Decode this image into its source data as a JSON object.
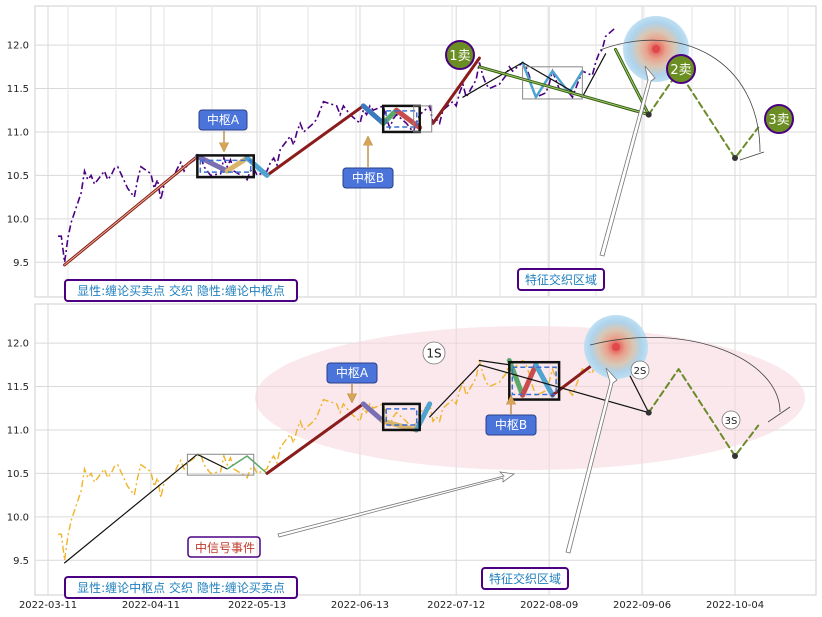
{
  "chart_data": [
    {
      "type": "line",
      "panel": "top",
      "ylim": [
        9.1,
        12.45
      ],
      "yticks": [
        "9.5",
        "10.0",
        "10.5",
        "11.0",
        "11.5",
        "12.0"
      ],
      "grid": true,
      "price_series": {
        "style": "dash-dot",
        "color": "#4b0082",
        "points": [
          [
            "2022-03-14",
            9.8
          ],
          [
            "2022-03-15",
            9.8
          ],
          [
            "2022-03-16",
            9.5
          ],
          [
            "2022-03-17",
            9.78
          ],
          [
            "2022-03-18",
            9.96
          ],
          [
            "2022-03-21",
            10.3
          ],
          [
            "2022-03-22",
            10.55
          ],
          [
            "2022-03-23",
            10.45
          ],
          [
            "2022-03-24",
            10.5
          ],
          [
            "2022-03-25",
            10.4
          ],
          [
            "2022-03-28",
            10.55
          ],
          [
            "2022-03-29",
            10.45
          ],
          [
            "2022-03-30",
            10.5
          ],
          [
            "2022-03-31",
            10.58
          ],
          [
            "2022-04-01",
            10.6
          ],
          [
            "2022-04-04",
            10.35
          ],
          [
            "2022-04-05",
            10.3
          ],
          [
            "2022-04-06",
            10.25
          ],
          [
            "2022-04-07",
            10.45
          ],
          [
            "2022-04-08",
            10.6
          ],
          [
            "2022-04-11",
            10.52
          ],
          [
            "2022-04-12",
            10.35
          ],
          [
            "2022-04-13",
            10.45
          ],
          [
            "2022-04-14",
            10.22
          ],
          [
            "2022-04-15",
            10.4
          ],
          [
            "2022-04-18",
            10.5
          ],
          [
            "2022-04-19",
            10.58
          ],
          [
            "2022-04-20",
            10.65
          ],
          [
            "2022-04-21",
            10.55
          ],
          [
            "2022-04-22",
            10.62
          ],
          [
            "2022-04-25",
            10.7
          ],
          [
            "2022-04-26",
            10.72
          ],
          [
            "2022-04-27",
            10.6
          ],
          [
            "2022-04-28",
            10.55
          ],
          [
            "2022-04-29",
            10.5
          ],
          [
            "2022-05-02",
            10.52
          ],
          [
            "2022-05-03",
            10.7
          ],
          [
            "2022-05-04",
            10.6
          ],
          [
            "2022-05-05",
            10.68
          ],
          [
            "2022-05-06",
            10.55
          ],
          [
            "2022-05-09",
            10.48
          ],
          [
            "2022-05-10",
            10.45
          ],
          [
            "2022-05-11",
            10.55
          ],
          [
            "2022-05-12",
            10.58
          ],
          [
            "2022-05-13",
            10.5
          ],
          [
            "2022-05-16",
            10.55
          ],
          [
            "2022-05-17",
            10.65
          ],
          [
            "2022-05-18",
            10.7
          ],
          [
            "2022-05-19",
            10.62
          ],
          [
            "2022-05-20",
            10.8
          ],
          [
            "2022-05-23",
            10.95
          ],
          [
            "2022-05-24",
            10.85
          ],
          [
            "2022-05-25",
            11.0
          ],
          [
            "2022-05-26",
            11.1
          ],
          [
            "2022-05-27",
            11.0
          ],
          [
            "2022-05-30",
            11.1
          ],
          [
            "2022-05-31",
            11.15
          ],
          [
            "2022-06-01",
            11.25
          ],
          [
            "2022-06-02",
            11.35
          ],
          [
            "2022-06-06",
            11.3
          ],
          [
            "2022-06-07",
            11.2
          ],
          [
            "2022-06-08",
            11.3
          ],
          [
            "2022-06-09",
            11.25
          ],
          [
            "2022-06-10",
            11.2
          ],
          [
            "2022-06-13",
            11.1
          ],
          [
            "2022-06-14",
            11.25
          ],
          [
            "2022-06-15",
            11.2
          ],
          [
            "2022-06-16",
            11.3
          ],
          [
            "2022-06-17",
            11.25
          ],
          [
            "2022-06-20",
            11.3
          ],
          [
            "2022-06-21",
            11.15
          ],
          [
            "2022-06-22",
            11.05
          ],
          [
            "2022-06-23",
            11.15
          ],
          [
            "2022-06-24",
            11.2
          ],
          [
            "2022-06-27",
            11.1
          ],
          [
            "2022-06-28",
            11.05
          ],
          [
            "2022-06-29",
            11.0
          ],
          [
            "2022-06-30",
            11.1
          ],
          [
            "2022-07-01",
            11.2
          ],
          [
            "2022-07-04",
            11.3
          ],
          [
            "2022-07-05",
            11.1
          ],
          [
            "2022-07-06",
            11.15
          ],
          [
            "2022-07-07",
            11.1
          ],
          [
            "2022-07-08",
            11.25
          ],
          [
            "2022-07-11",
            11.35
          ],
          [
            "2022-07-12",
            11.3
          ],
          [
            "2022-07-13",
            11.45
          ],
          [
            "2022-07-14",
            11.55
          ],
          [
            "2022-07-15",
            11.4
          ],
          [
            "2022-07-18",
            11.6
          ],
          [
            "2022-07-19",
            11.8
          ],
          [
            "2022-07-20",
            11.65
          ],
          [
            "2022-07-21",
            11.55
          ],
          [
            "2022-07-22",
            11.5
          ],
          [
            "2022-07-25",
            11.55
          ],
          [
            "2022-07-26",
            11.6
          ],
          [
            "2022-07-27",
            11.65
          ],
          [
            "2022-07-28",
            11.75
          ],
          [
            "2022-07-29",
            11.7
          ],
          [
            "2022-08-01",
            11.8
          ],
          [
            "2022-08-02",
            11.75
          ],
          [
            "2022-08-03",
            11.65
          ],
          [
            "2022-08-04",
            11.5
          ],
          [
            "2022-08-05",
            11.4
          ],
          [
            "2022-08-08",
            11.45
          ],
          [
            "2022-08-09",
            11.55
          ],
          [
            "2022-08-10",
            11.7
          ],
          [
            "2022-08-11",
            11.6
          ],
          [
            "2022-08-12",
            11.5
          ],
          [
            "2022-08-15",
            11.45
          ],
          [
            "2022-08-16",
            11.4
          ],
          [
            "2022-08-17",
            11.5
          ],
          [
            "2022-08-18",
            11.6
          ],
          [
            "2022-08-19",
            11.7
          ],
          [
            "2022-08-22",
            11.65
          ],
          [
            "2022-08-23",
            11.8
          ],
          [
            "2022-08-24",
            11.9
          ],
          [
            "2022-08-25",
            11.95
          ],
          [
            "2022-08-26",
            12.1
          ],
          [
            "2022-08-29",
            12.2
          ]
        ]
      },
      "boxes": [
        {
          "label": "中枢A",
          "low": 10.48,
          "high": 10.73,
          "x_start": "2022-04-25",
          "x_end": "2022-05-12"
        },
        {
          "label": "中枢B",
          "low": 11.0,
          "high": 11.3,
          "x_start": "2022-06-20",
          "x_end": "2022-07-01"
        }
      ],
      "signals": [
        "1卖",
        "2卖",
        "3卖"
      ],
      "region_label": "特征交织区域",
      "legend": "显性:缠论买卖点 交织 隐性:缠论中枢点"
    },
    {
      "type": "line",
      "panel": "bottom",
      "ylim": [
        9.1,
        12.45
      ],
      "yticks": [
        "9.5",
        "10.0",
        "10.5",
        "11.0",
        "11.5",
        "12.0"
      ],
      "xticks": [
        "2022-03-11",
        "2022-04-11",
        "2022-05-13",
        "2022-06-13",
        "2022-07-12",
        "2022-08-09",
        "2022-09-06",
        "2022-10-04"
      ],
      "grid": true,
      "price_series": {
        "style": "dash-dot",
        "color": "#f0b429",
        "same_as_panel": "top"
      },
      "boxes": [
        {
          "label": "中枢A",
          "low": 11.0,
          "high": 11.3,
          "x_start": "2022-06-20",
          "x_end": "2022-07-01"
        },
        {
          "label": "中枢B",
          "low": 11.35,
          "high": 11.78,
          "x_start": "2022-07-28",
          "x_end": "2022-08-12"
        }
      ],
      "signals": [
        "1S",
        "2S",
        "3S"
      ],
      "event_label": "中信号事件",
      "region_label": "特征交织区域",
      "legend": "显性:缠论中枢点 交织 隐性:缠论买卖点"
    }
  ]
}
